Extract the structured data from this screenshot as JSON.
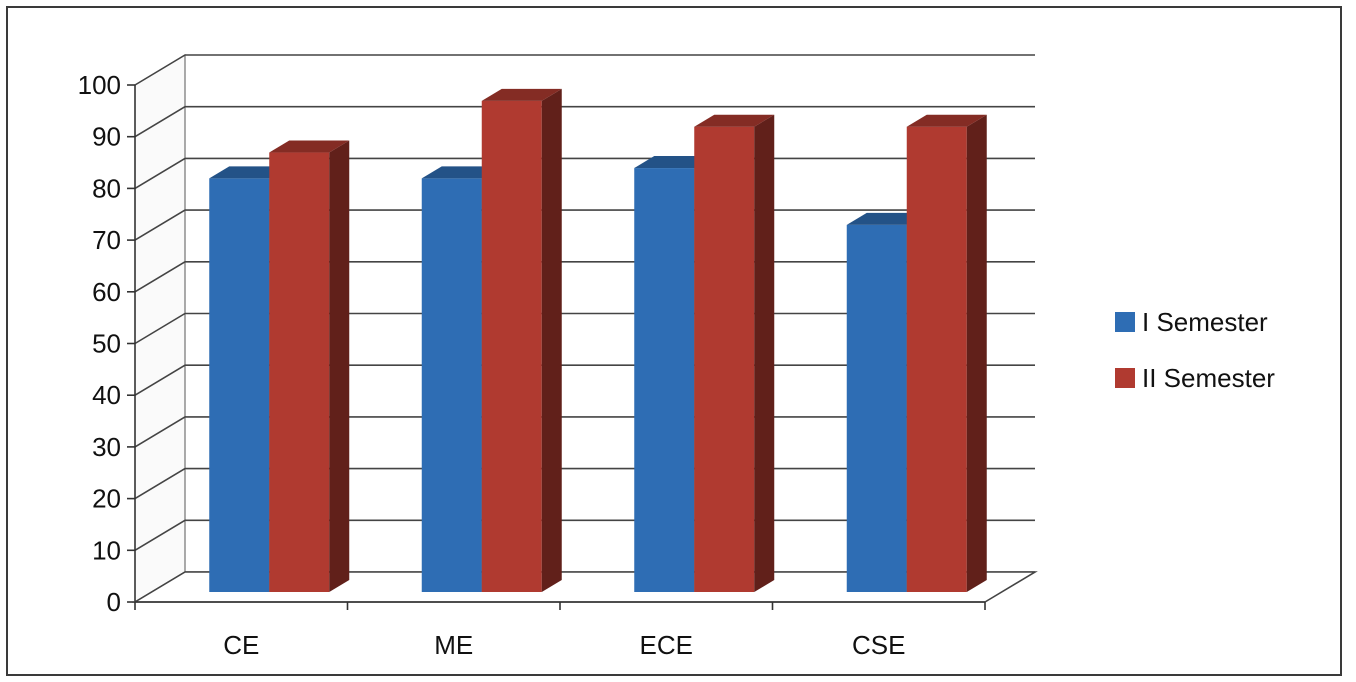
{
  "chart_data": {
    "type": "bar",
    "categories": [
      "CE",
      "ME",
      "ECE",
      "CSE"
    ],
    "series": [
      {
        "name": "I Semester",
        "values": [
          80,
          80,
          82,
          71
        ],
        "color": "#2e6db4"
      },
      {
        "name": "II Semester",
        "values": [
          85,
          95,
          90,
          90
        ],
        "color": "#b03a30"
      }
    ],
    "yticks": [
      "0",
      "10",
      "20",
      "30",
      "40",
      "50",
      "60",
      "70",
      "80",
      "90",
      "100"
    ],
    "ylim": [
      0,
      100
    ],
    "grid": true,
    "legend": "right",
    "style": "3d-clustered-column"
  }
}
